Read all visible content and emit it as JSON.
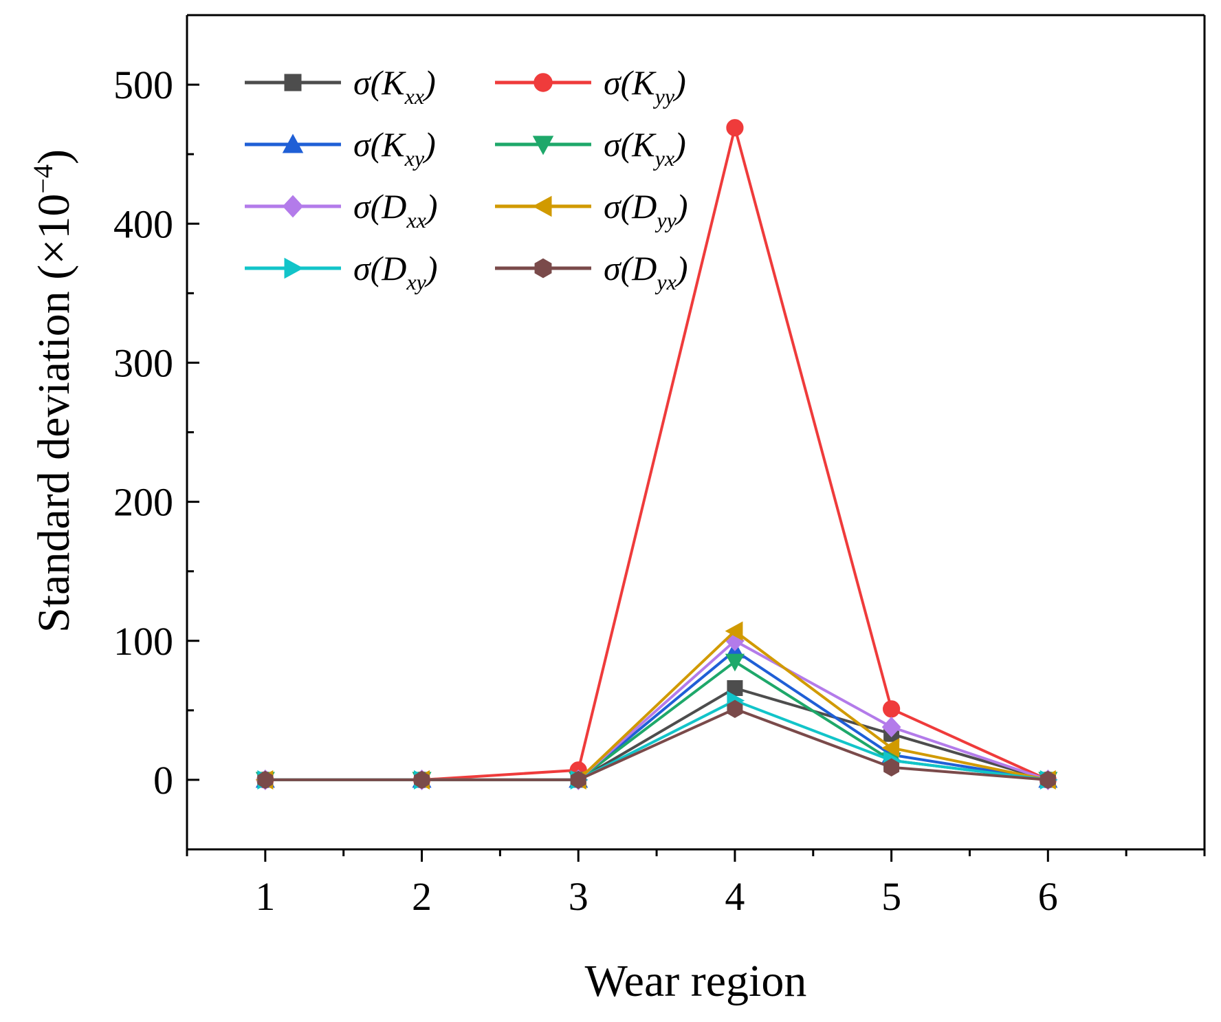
{
  "chart_data": {
    "type": "line",
    "title": "",
    "xlabel": "Wear region",
    "ylabel": "Standard deviation (×10",
    "ylabel_exponent": "−4",
    "ylabel_close": ")",
    "x": [
      1,
      2,
      3,
      4,
      5,
      6
    ],
    "x_ticks": [
      "1",
      "2",
      "3",
      "4",
      "5",
      "6"
    ],
    "xlim": [
      0.5,
      7.0
    ],
    "y_ticks": [
      "0",
      "100",
      "200",
      "300",
      "400",
      "500"
    ],
    "y_tick_values": [
      0,
      100,
      200,
      300,
      400,
      500
    ],
    "ylim": [
      -50,
      550
    ],
    "grid": false,
    "legend_position": "top-left",
    "series": [
      {
        "name": "σ(Kxx)",
        "sym": "K",
        "sub": "xx",
        "color": "#4d4d4d",
        "marker": "square",
        "values": [
          0,
          0,
          0,
          66,
          33,
          0
        ]
      },
      {
        "name": "σ(Kyy)",
        "sym": "K",
        "sub": "yy",
        "color": "#ef3b3b",
        "marker": "circle",
        "values": [
          0,
          0,
          7,
          469,
          51,
          0
        ]
      },
      {
        "name": "σ(Kxy)",
        "sym": "K",
        "sub": "xy",
        "color": "#1f5fd6",
        "marker": "triangle-up",
        "values": [
          0,
          0,
          0,
          93,
          18,
          0
        ]
      },
      {
        "name": "σ(Kyx)",
        "sym": "K",
        "sub": "yx",
        "color": "#1ea86a",
        "marker": "triangle-down",
        "values": [
          0,
          0,
          0,
          85,
          14,
          0
        ]
      },
      {
        "name": "σ(Dxx)",
        "sym": "D",
        "sub": "xx",
        "color": "#b37bea",
        "marker": "diamond",
        "values": [
          0,
          0,
          0,
          100,
          38,
          0
        ]
      },
      {
        "name": "σ(Dyy)",
        "sym": "D",
        "sub": "yy",
        "color": "#d19a00",
        "marker": "triangle-left",
        "values": [
          0,
          0,
          0,
          107,
          23,
          0
        ]
      },
      {
        "name": "σ(Dxy)",
        "sym": "D",
        "sub": "xy",
        "color": "#12c4c9",
        "marker": "triangle-right",
        "values": [
          0,
          0,
          0,
          57,
          14,
          0
        ]
      },
      {
        "name": "σ(Dyx)",
        "sym": "D",
        "sub": "yx",
        "color": "#7a4a4a",
        "marker": "hexagon",
        "values": [
          0,
          0,
          0,
          51,
          9,
          0
        ]
      }
    ]
  }
}
